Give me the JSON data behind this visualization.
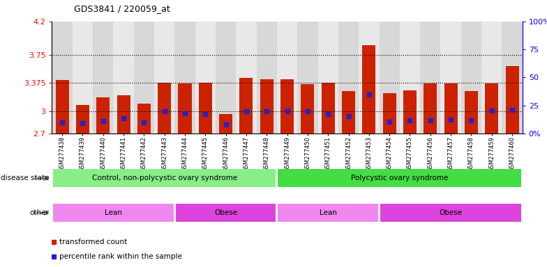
{
  "title": "GDS3841 / 220059_at",
  "samples": [
    "GSM277438",
    "GSM277439",
    "GSM277440",
    "GSM277441",
    "GSM277442",
    "GSM277443",
    "GSM277444",
    "GSM277445",
    "GSM277446",
    "GSM277447",
    "GSM277448",
    "GSM277449",
    "GSM277450",
    "GSM277451",
    "GSM277452",
    "GSM277453",
    "GSM277454",
    "GSM277455",
    "GSM277456",
    "GSM277457",
    "GSM277458",
    "GSM277459",
    "GSM277460"
  ],
  "bar_values": [
    3.42,
    3.08,
    3.18,
    3.21,
    3.1,
    3.38,
    3.37,
    3.38,
    2.96,
    3.44,
    3.43,
    3.43,
    3.36,
    3.38,
    3.27,
    3.88,
    3.24,
    3.28,
    3.37,
    3.37,
    3.27,
    3.37,
    3.6
  ],
  "blue_dot_values": [
    2.85,
    2.84,
    2.87,
    2.9,
    2.85,
    3.0,
    2.97,
    2.96,
    2.82,
    3.0,
    3.0,
    3.0,
    3.0,
    2.96,
    2.93,
    3.22,
    2.86,
    2.88,
    2.88,
    2.89,
    2.88,
    3.01,
    3.02
  ],
  "ylim_left": [
    2.7,
    4.2
  ],
  "ylim_right": [
    0,
    100
  ],
  "yticks_left": [
    2.7,
    3.0,
    3.375,
    3.75,
    4.2
  ],
  "ytick_labels_left": [
    "2.7",
    "3",
    "3.375",
    "3.75",
    "4.2"
  ],
  "yticks_right": [
    0,
    25,
    50,
    75,
    100
  ],
  "ytick_labels_right": [
    "0%",
    "25",
    "50",
    "75",
    "100%"
  ],
  "bar_color": "#cc2200",
  "dot_color": "#2222cc",
  "grid_ticks": [
    3.0,
    3.375,
    3.75
  ],
  "disease_state_groups": [
    {
      "label": "Control, non-polycystic ovary syndrome",
      "start": 0,
      "end": 11,
      "color": "#88ee88"
    },
    {
      "label": "Polycystic ovary syndrome",
      "start": 11,
      "end": 23,
      "color": "#44dd44"
    }
  ],
  "other_groups": [
    {
      "label": "Lean",
      "start": 0,
      "end": 6,
      "color": "#ee88ee"
    },
    {
      "label": "Obese",
      "start": 6,
      "end": 11,
      "color": "#dd44dd"
    },
    {
      "label": "Lean",
      "start": 11,
      "end": 16,
      "color": "#ee88ee"
    },
    {
      "label": "Obese",
      "start": 16,
      "end": 23,
      "color": "#dd44dd"
    }
  ],
  "legend_items": [
    {
      "label": "transformed count",
      "color": "#cc2200"
    },
    {
      "label": "percentile rank within the sample",
      "color": "#2222cc"
    }
  ],
  "bg_color": "#ffffff",
  "plot_bg": "#e8e8e8",
  "col_colors": [
    "#d8d8d8",
    "#e8e8e8"
  ]
}
